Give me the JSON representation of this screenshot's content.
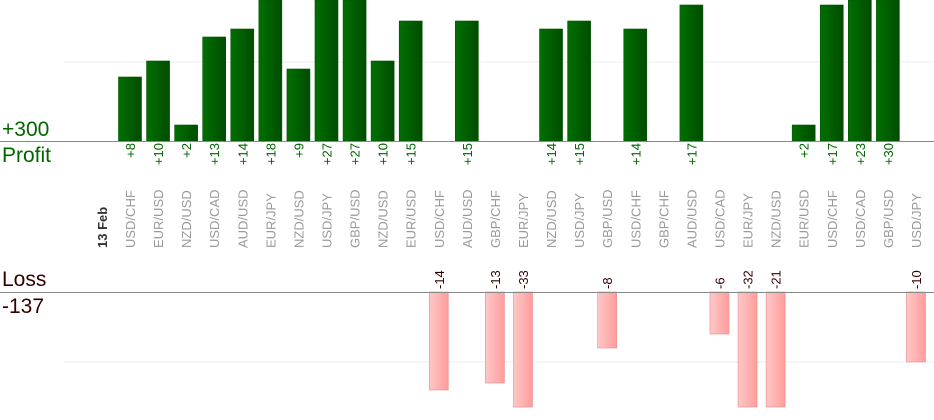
{
  "chart_data": {
    "type": "bar",
    "date_label": "13 Feb",
    "profit_total": "+300",
    "profit_label": "Profit",
    "loss_label": "Loss",
    "loss_total": "-137",
    "categories": [
      "USD/CHF",
      "EUR/USD",
      "NZD/USD",
      "USD/CAD",
      "AUD/USD",
      "EUR/JPY",
      "NZD/USD",
      "USD/JPY",
      "GBP/USD",
      "NZD/USD",
      "EUR/USD",
      "USD/CHF",
      "AUD/USD",
      "GBP/CHF",
      "EUR/JPY",
      "NZD/USD",
      "USD/JPY",
      "GBP/USD",
      "USD/CHF",
      "GBP/CHF",
      "AUD/USD",
      "USD/CAD",
      "EUR/JPY",
      "NZD/USD",
      "EUR/USD",
      "USD/CHF",
      "USD/CAD",
      "GBP/USD",
      "USD/JPY"
    ],
    "values": [
      8,
      10,
      2,
      13,
      14,
      18,
      9,
      27,
      27,
      10,
      15,
      -14,
      15,
      -13,
      -33,
      14,
      15,
      -8,
      14,
      null,
      17,
      -6,
      -32,
      -21,
      2,
      17,
      23,
      30,
      -10
    ],
    "value_labels": [
      "+8",
      "+10",
      "+2",
      "+13",
      "+14",
      "+18",
      "+9",
      "+27",
      "+27",
      "+10",
      "+15",
      "-14",
      "+15",
      "-13",
      "-33",
      "+14",
      "+15",
      "-8",
      "+14",
      "",
      "+17",
      "-6",
      "-32",
      "-21",
      "+2",
      "+17",
      "+23",
      "+30",
      "-10"
    ],
    "grid": true,
    "colors": {
      "profit": "#006600",
      "loss": "#ffaaaa",
      "loss_text": "#330000",
      "category_text": "#999999"
    }
  }
}
